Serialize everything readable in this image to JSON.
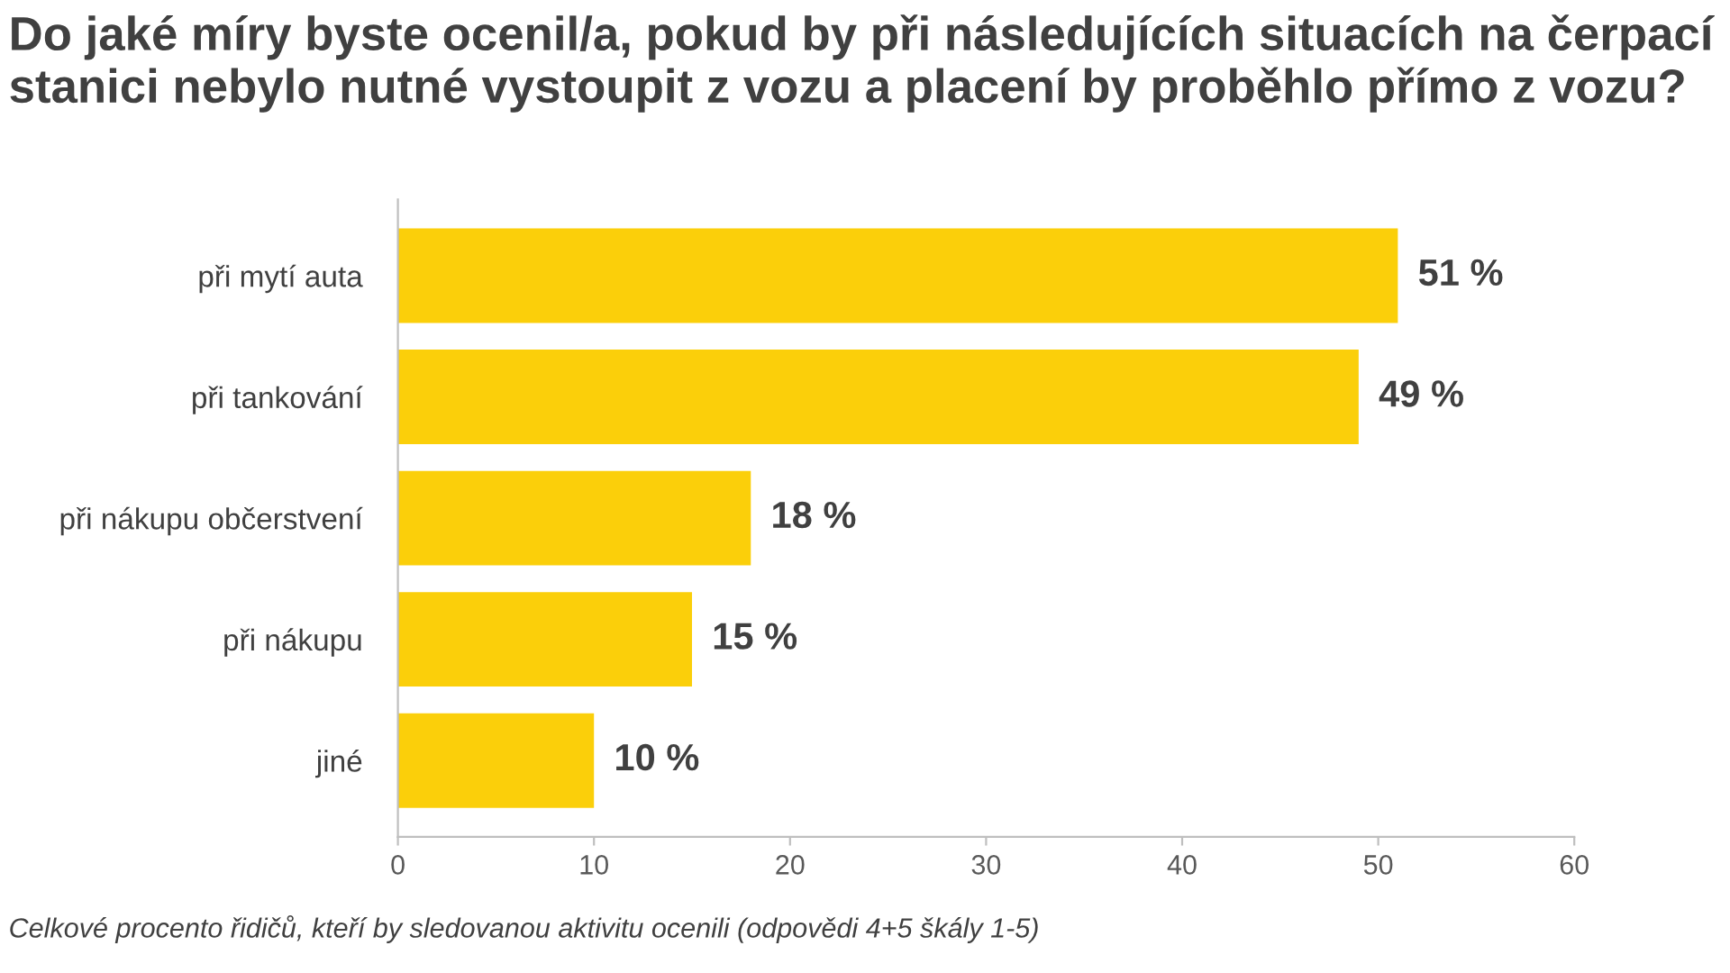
{
  "chart_data": {
    "type": "bar",
    "orientation": "horizontal",
    "title": "Do jaké míry byste ocenil/a, pokud by při následujících situacích na čerpací stanici nebylo nutné vystoupit z vozu a placení by proběhlo přímo z vozu?",
    "categories": [
      "při mytí auta",
      "při tankování",
      "při nákupu občerstvení",
      "při nákupu",
      "jiné"
    ],
    "values": [
      51,
      49,
      18,
      15,
      10
    ],
    "value_labels": [
      "51 %",
      "49 %",
      "18 %",
      "15 %",
      "10 %"
    ],
    "color": "#fbcf0a",
    "xlim": [
      0,
      60
    ],
    "xticks": [
      0,
      10,
      20,
      30,
      40,
      50,
      60
    ],
    "grid": false,
    "legend": false,
    "annotations": [
      "Celkové procento řidičů, kteří by sledovanou aktivitu ocenili (odpovědi 4+5 škály 1-5)"
    ]
  }
}
